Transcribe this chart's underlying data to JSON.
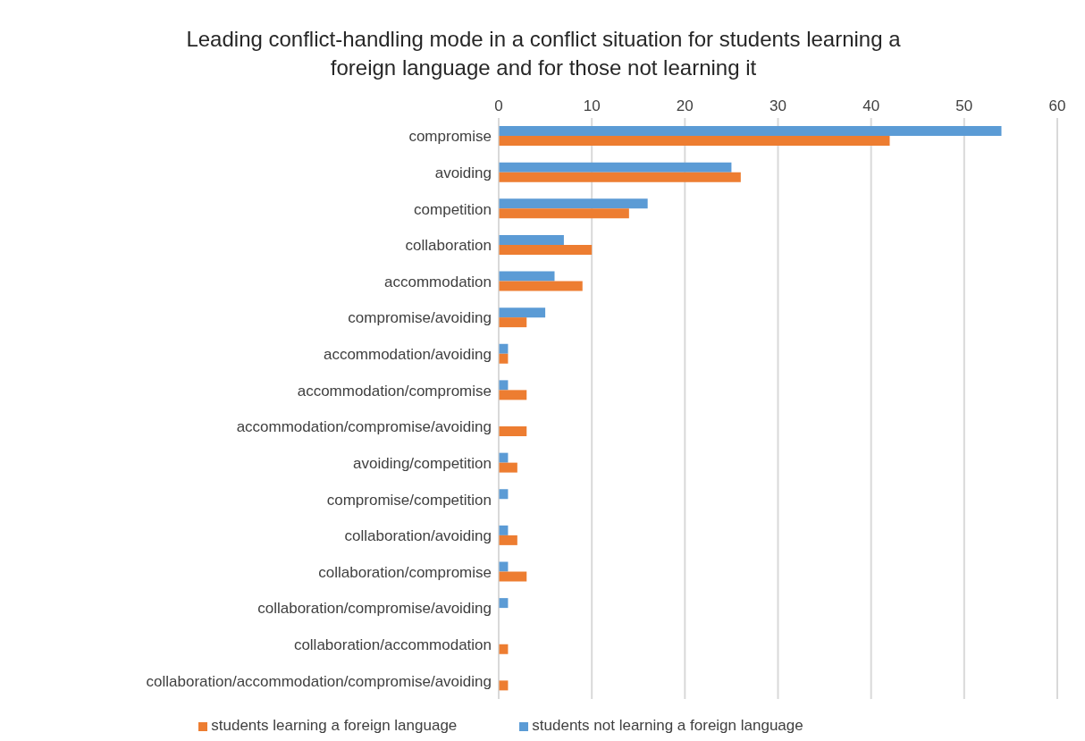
{
  "chart_data": {
    "type": "bar",
    "orientation": "horizontal",
    "title": "Leading conflict-handling mode in a conflict situation for students learning a foreign language and for those not learning it",
    "categories": [
      "compromise",
      "avoiding",
      "competition",
      "collaboration",
      "accommodation",
      "compromise/avoiding",
      "accommodation/avoiding",
      "accommodation/compromise",
      "accommodation/compromise/avoiding",
      "avoiding/competition",
      "compromise/competition",
      "collaboration/avoiding",
      "collaboration/compromise",
      "collaboration/compromise/avoiding",
      "collaboration/accommodation",
      "collaboration/accommodation/compromise/avoiding"
    ],
    "series": [
      {
        "name": "students not learning a foreign language",
        "color": "#5b9bd5",
        "values": [
          54,
          25,
          16,
          7,
          6,
          5,
          1,
          1,
          0,
          1,
          1,
          1,
          1,
          1,
          0,
          0
        ]
      },
      {
        "name": "students learning a foreign language",
        "color": "#ed7d31",
        "values": [
          42,
          26,
          14,
          10,
          9,
          3,
          1,
          3,
          3,
          2,
          0,
          2,
          3,
          0,
          1,
          1
        ]
      }
    ],
    "xlim": [
      0,
      60
    ],
    "xticks": [
      0,
      10,
      20,
      30,
      40,
      50,
      60
    ],
    "grid": "x",
    "legend": "bottom"
  }
}
